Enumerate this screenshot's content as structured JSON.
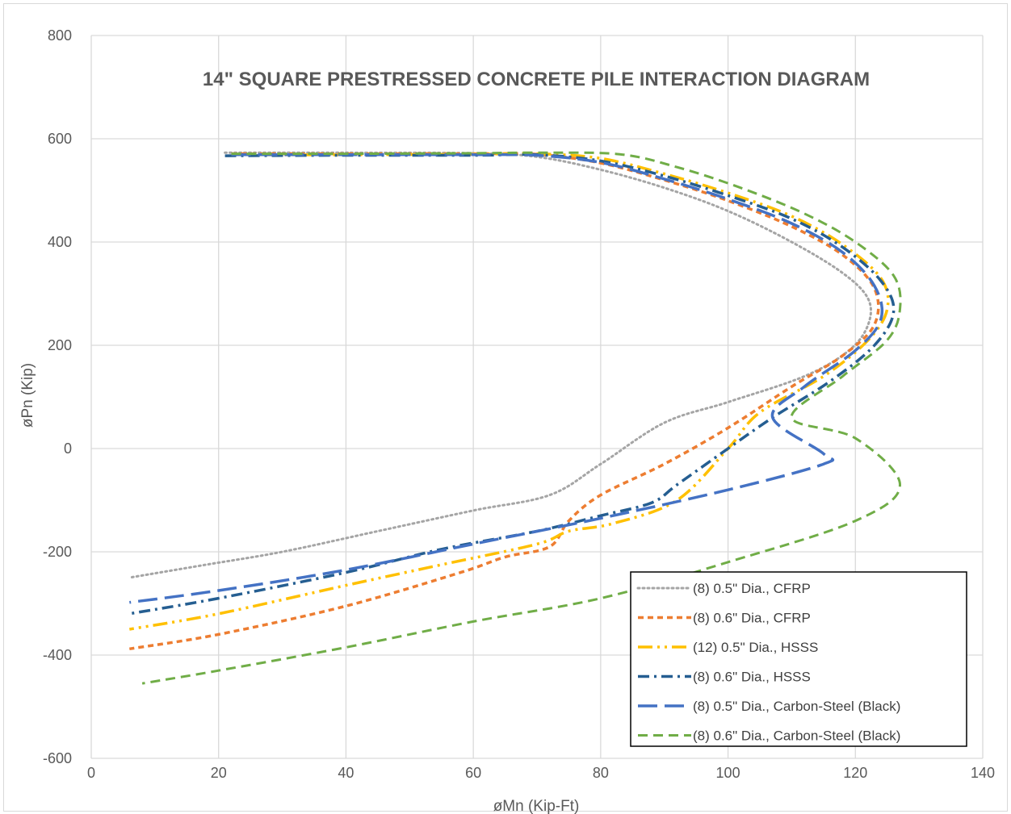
{
  "chart_data": {
    "type": "line",
    "title": "14\" SQUARE PRESTRESSED CONCRETE PILE INTERACTION DIAGRAM",
    "xlabel": "øMn (Kip-Ft)",
    "ylabel": "øPn (Kip)",
    "xlim": [
      0,
      140
    ],
    "ylim": [
      -600,
      800
    ],
    "xticks": [
      "0",
      "20",
      "40",
      "60",
      "80",
      "100",
      "120",
      "140"
    ],
    "yticks": [
      "800",
      "600",
      "400",
      "200",
      "0",
      "-200",
      "-400",
      "-600"
    ],
    "grid": true,
    "legend_position": "bottom-right",
    "series": [
      {
        "name": "(8) 0.5\" Dia., CFRP",
        "color": "#a5a5a5",
        "dash": "dotted",
        "points": [
          [
            21,
            573
          ],
          [
            40,
            573
          ],
          [
            60,
            572
          ],
          [
            70,
            565
          ],
          [
            80,
            540
          ],
          [
            90,
            505
          ],
          [
            100,
            460
          ],
          [
            110,
            400
          ],
          [
            118,
            340
          ],
          [
            122,
            290
          ],
          [
            122,
            240
          ],
          [
            119,
            190
          ],
          [
            112,
            140
          ],
          [
            100,
            90
          ],
          [
            90,
            50
          ],
          [
            80,
            -30
          ],
          [
            72,
            -90
          ],
          [
            60,
            -120
          ],
          [
            45,
            -160
          ],
          [
            30,
            -200
          ],
          [
            18,
            -225
          ],
          [
            6,
            -250
          ]
        ]
      },
      {
        "name": "(8) 0.6\" Dia., CFRP",
        "color": "#ed7d31",
        "dash": "short-dash",
        "points": [
          [
            22,
            571
          ],
          [
            40,
            571
          ],
          [
            60,
            571
          ],
          [
            70,
            570
          ],
          [
            80,
            553
          ],
          [
            90,
            520
          ],
          [
            100,
            480
          ],
          [
            110,
            430
          ],
          [
            118,
            375
          ],
          [
            123,
            310
          ],
          [
            123,
            240
          ],
          [
            118,
            180
          ],
          [
            110,
            120
          ],
          [
            100,
            40
          ],
          [
            90,
            -30
          ],
          [
            80,
            -90
          ],
          [
            75,
            -140
          ],
          [
            72,
            -190
          ],
          [
            65,
            -210
          ],
          [
            58,
            -240
          ],
          [
            40,
            -305
          ],
          [
            20,
            -360
          ],
          [
            6,
            -388
          ]
        ]
      },
      {
        "name": "(12) 0.5\" Dia., HSSS",
        "color": "#ffc000",
        "dash": "long-dash-dot-dot",
        "points": [
          [
            22,
            569
          ],
          [
            40,
            569
          ],
          [
            60,
            570
          ],
          [
            70,
            571
          ],
          [
            80,
            562
          ],
          [
            90,
            532
          ],
          [
            100,
            495
          ],
          [
            110,
            450
          ],
          [
            118,
            395
          ],
          [
            124,
            330
          ],
          [
            125,
            270
          ],
          [
            122,
            210
          ],
          [
            115,
            140
          ],
          [
            105,
            70
          ],
          [
            100,
            0
          ],
          [
            92,
            -100
          ],
          [
            82,
            -145
          ],
          [
            75,
            -160
          ],
          [
            70,
            -185
          ],
          [
            55,
            -225
          ],
          [
            40,
            -265
          ],
          [
            20,
            -320
          ],
          [
            6,
            -350
          ]
        ]
      },
      {
        "name": "(8) 0.6\" Dia., HSSS",
        "color": "#255e91",
        "dash": "dash-dot",
        "points": [
          [
            21,
            567
          ],
          [
            40,
            568
          ],
          [
            60,
            568
          ],
          [
            70,
            569
          ],
          [
            80,
            557
          ],
          [
            90,
            528
          ],
          [
            100,
            490
          ],
          [
            110,
            445
          ],
          [
            118,
            390
          ],
          [
            124,
            325
          ],
          [
            126,
            265
          ],
          [
            123,
            200
          ],
          [
            116,
            130
          ],
          [
            107,
            60
          ],
          [
            100,
            0
          ],
          [
            92,
            -70
          ],
          [
            88,
            -105
          ],
          [
            80,
            -130
          ],
          [
            70,
            -160
          ],
          [
            55,
            -195
          ],
          [
            40,
            -240
          ],
          [
            20,
            -290
          ],
          [
            6,
            -320
          ]
        ]
      },
      {
        "name": "(8) 0.5\" Dia., Carbon-Steel (Black)",
        "color": "#4472c4",
        "dash": "long-dash",
        "points": [
          [
            22,
            569
          ],
          [
            40,
            569
          ],
          [
            60,
            569
          ],
          [
            70,
            568
          ],
          [
            80,
            554
          ],
          [
            90,
            522
          ],
          [
            100,
            483
          ],
          [
            110,
            436
          ],
          [
            118,
            380
          ],
          [
            123,
            315
          ],
          [
            124,
            250
          ],
          [
            120,
            190
          ],
          [
            112,
            120
          ],
          [
            107,
            60
          ],
          [
            115,
            -10
          ],
          [
            115,
            -30
          ],
          [
            100,
            -80
          ],
          [
            80,
            -135
          ],
          [
            60,
            -185
          ],
          [
            40,
            -235
          ],
          [
            20,
            -275
          ],
          [
            6,
            -298
          ]
        ]
      },
      {
        "name": "(8) 0.6\" Dia., Carbon-Steel (Black)",
        "color": "#70ad47",
        "dash": "dash",
        "points": [
          [
            22,
            571
          ],
          [
            40,
            571
          ],
          [
            60,
            572
          ],
          [
            70,
            573
          ],
          [
            83,
            570
          ],
          [
            92,
            545
          ],
          [
            102,
            505
          ],
          [
            112,
            455
          ],
          [
            120,
            400
          ],
          [
            126,
            335
          ],
          [
            127,
            270
          ],
          [
            125,
            210
          ],
          [
            118,
            140
          ],
          [
            110,
            60
          ],
          [
            120,
            20
          ],
          [
            127,
            -70
          ],
          [
            120,
            -140
          ],
          [
            100,
            -220
          ],
          [
            80,
            -290
          ],
          [
            60,
            -335
          ],
          [
            40,
            -385
          ],
          [
            20,
            -430
          ],
          [
            8,
            -455
          ]
        ]
      }
    ]
  }
}
